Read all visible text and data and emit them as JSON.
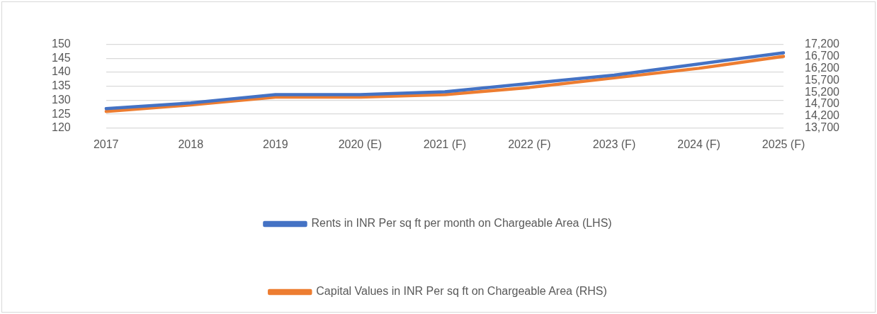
{
  "chart_data": {
    "type": "line",
    "categories": [
      "2017",
      "2018",
      "2019",
      "2020 (E)",
      "2021 (F)",
      "2022 (F)",
      "2023 (F)",
      "2024 (F)",
      "2025 (F)"
    ],
    "series": [
      {
        "name": "Rents in INR Per sq ft per month on Chargeable Area (LHS)",
        "color": "#4472c4",
        "values": [
          127,
          129,
          132,
          132,
          133,
          136,
          139,
          143,
          147
        ]
      },
      {
        "name": "Capital Values in INR Per sq ft on Chargeable Area (RHS)",
        "color": "#ed7d31",
        "axis": "y2",
        "values": [
          14400,
          14670,
          15000,
          15000,
          15100,
          15400,
          15800,
          16200,
          16700
        ]
      }
    ],
    "ylim": [
      120,
      150
    ],
    "yticks": [
      120,
      125,
      130,
      135,
      140,
      145,
      150
    ],
    "y2lim": [
      13700,
      17200
    ],
    "y2ticks": [
      {
        "value": 13700,
        "label": "13,700"
      },
      {
        "value": 14200,
        "label": "14,200"
      },
      {
        "value": 14700,
        "label": "14,700"
      },
      {
        "value": 15200,
        "label": "15,200"
      },
      {
        "value": 15700,
        "label": "15,700"
      },
      {
        "value": 16200,
        "label": "16,200"
      },
      {
        "value": 16700,
        "label": "16,700"
      },
      {
        "value": 17200,
        "label": "17,200"
      }
    ],
    "grid": "y",
    "legend": "bottom",
    "marker": "none",
    "line_style": "solid"
  }
}
